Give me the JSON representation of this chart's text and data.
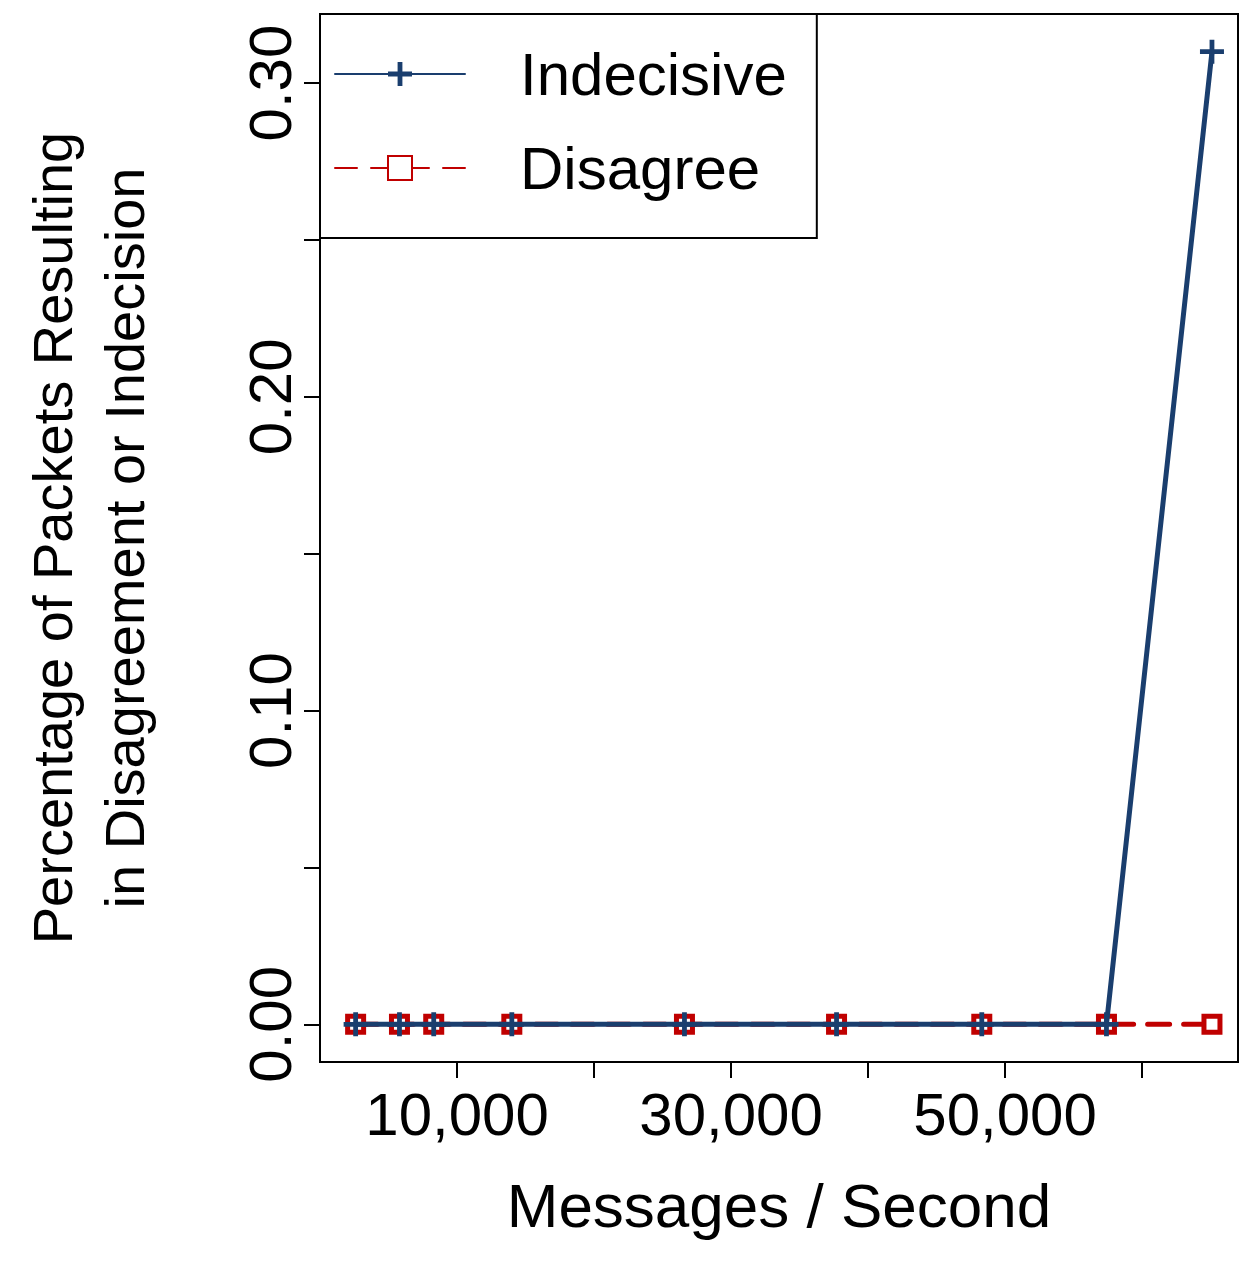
{
  "chart_data": {
    "type": "line",
    "xlabel": "Messages / Second",
    "ylabel": "Percentage of Packets Resulting\nin Disagreement or Indecision",
    "xlim": [
      0,
      67000
    ],
    "ylim": [
      -0.012,
      0.322
    ],
    "xticks": [
      {
        "value": 10000,
        "label": "10,000"
      },
      {
        "value": 20000,
        "label": null
      },
      {
        "value": 30000,
        "label": "30,000"
      },
      {
        "value": 40000,
        "label": null
      },
      {
        "value": 50000,
        "label": "50,000"
      },
      {
        "value": 60000,
        "label": null
      }
    ],
    "yticks": [
      {
        "value": 0,
        "label": "0.00"
      },
      {
        "value": 0.05,
        "label": null
      },
      {
        "value": 0.1,
        "label": "0.10"
      },
      {
        "value": 0.15,
        "label": null
      },
      {
        "value": 0.2,
        "label": "0.20"
      },
      {
        "value": 0.25,
        "label": null
      },
      {
        "value": 0.3,
        "label": "0.30"
      }
    ],
    "x": [
      2600,
      5800,
      8300,
      14000,
      26600,
      37700,
      48300,
      57400,
      65100
    ],
    "series": [
      {
        "name": "Indecisive",
        "color": "#1a3e6e",
        "marker": "cross",
        "line_style": "solid",
        "values": [
          0,
          0,
          0,
          0,
          0,
          0,
          0,
          0,
          0.31
        ]
      },
      {
        "name": "Disagree",
        "color": "#c00000",
        "marker": "square",
        "line_style": "dashed",
        "values": [
          0,
          0,
          0,
          0,
          0,
          0,
          0,
          0,
          0
        ]
      }
    ],
    "legend": "top left",
    "grid": false
  }
}
